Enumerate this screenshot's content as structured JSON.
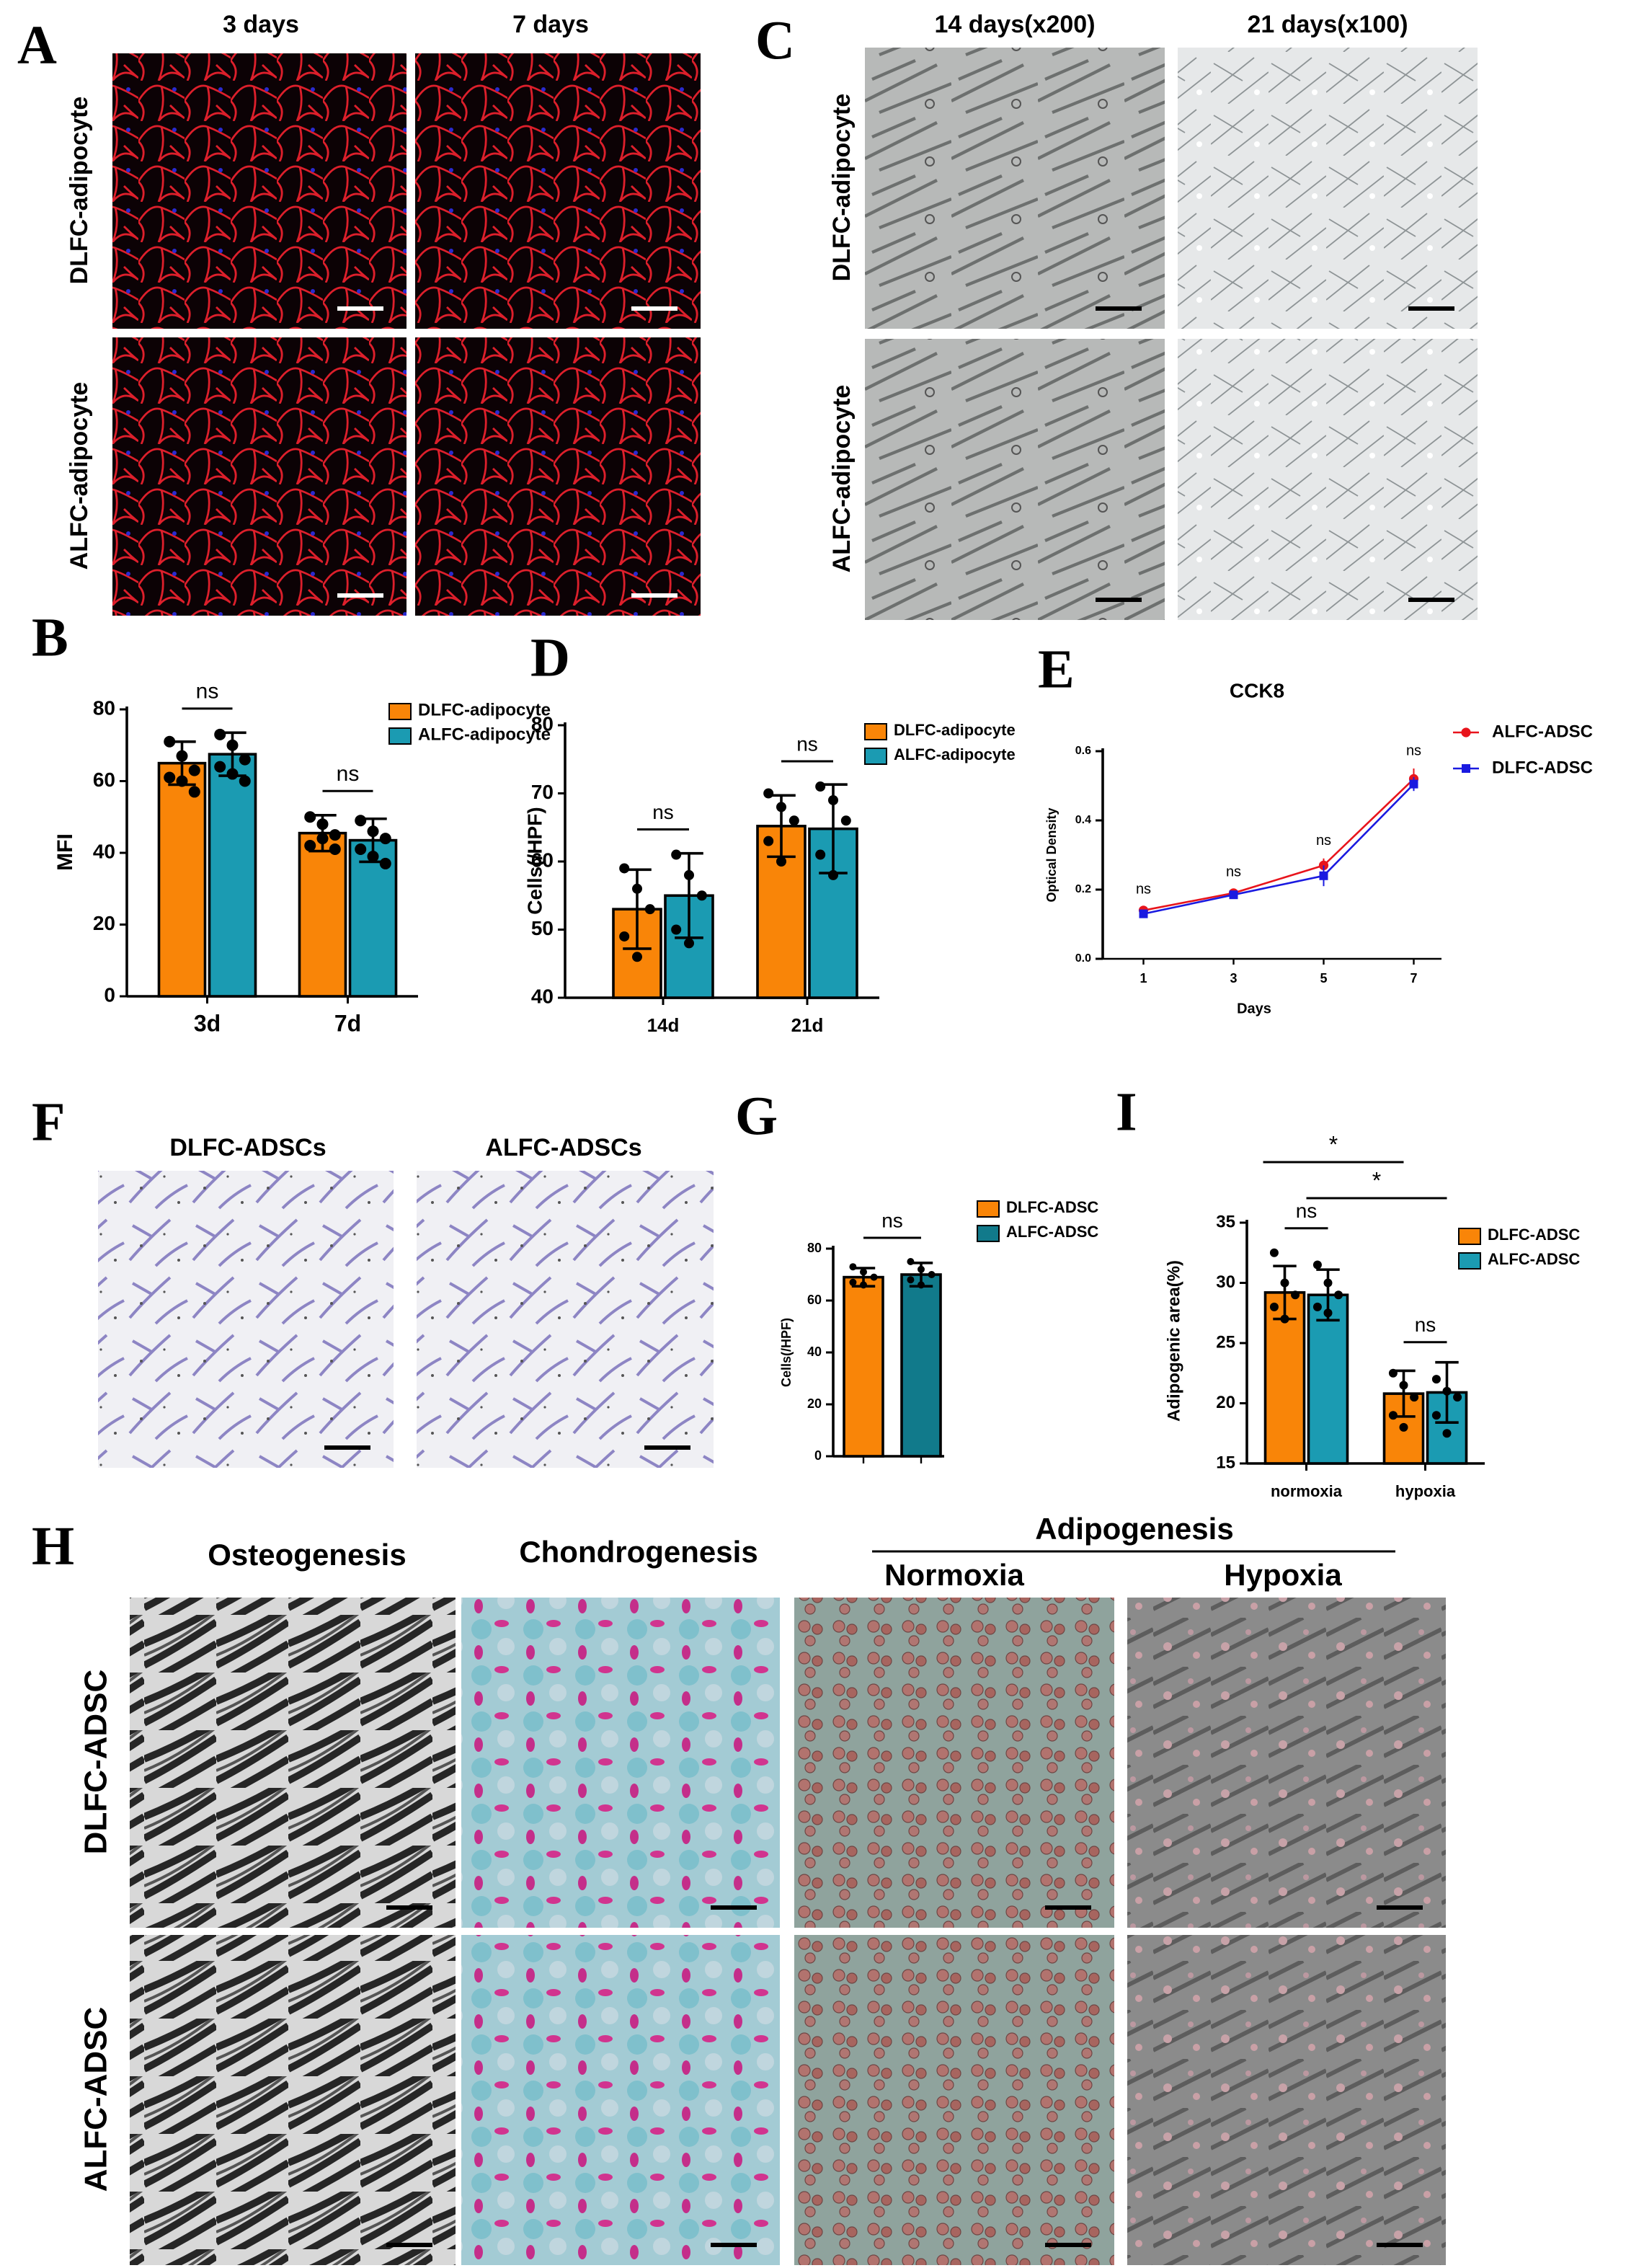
{
  "figure": {
    "A": {
      "letter": "A",
      "columns": [
        "3 days",
        "7 days"
      ],
      "rows": [
        "DLFC-adipocyte",
        "ALFC-adipocyte"
      ]
    },
    "C": {
      "letter": "C",
      "columns": [
        "14 days(x200)",
        "21 days(x100)"
      ],
      "rows": [
        "DLFC-adipocyte",
        "ALFC-adipocyte"
      ]
    },
    "F": {
      "letter": "F",
      "columns": [
        "DLFC-ADSCs",
        "ALFC-ADSCs"
      ]
    },
    "H": {
      "letter": "H",
      "columns": [
        "Osteogenesis",
        "Chondrogenesis"
      ],
      "group": "Adipogenesis",
      "subcolumns": [
        "Normoxia",
        "Hypoxia"
      ],
      "rows": [
        "DLFC-ADSC",
        "ALFC-ADSC"
      ]
    }
  },
  "chart_data": [
    {
      "letter": "B",
      "type": "bar",
      "ylabel": "MFI",
      "categories": [
        "3d",
        "7d"
      ],
      "ylim": [
        0,
        80
      ],
      "yticks": [
        0,
        20,
        40,
        60,
        80
      ],
      "series": [
        {
          "name": "DLFC-adipocyte",
          "color": "#f98508",
          "values": [
            65,
            45.5
          ],
          "errors": [
            6,
            5
          ],
          "points": [
            [
              71,
              67,
              63,
              61,
              60,
              57
            ],
            [
              50,
              48,
              45,
              42,
              44,
              41
            ]
          ]
        },
        {
          "name": "ALFC-adipocyte",
          "color": "#1b9bb2",
          "values": [
            67.5,
            43.5
          ],
          "errors": [
            6,
            6
          ],
          "points": [
            [
              73,
              70,
              66,
              64,
              62,
              60
            ],
            [
              49,
              46,
              44,
              41,
              39,
              37
            ]
          ]
        }
      ],
      "pair_labels": [
        "ns",
        "ns"
      ]
    },
    {
      "letter": "D",
      "type": "bar",
      "ylabel": "Cells(/HPF)",
      "categories": [
        "14d",
        "21d"
      ],
      "ylim": [
        40,
        80
      ],
      "yticks": [
        40,
        50,
        60,
        70,
        80
      ],
      "series": [
        {
          "name": "DLFC-adipocyte",
          "color": "#f98508",
          "values": [
            53,
            65.2
          ],
          "errors": [
            5.8,
            4.5
          ],
          "points": [
            [
              59,
              56,
              53,
              49,
              46
            ],
            [
              70,
              68,
              66,
              63,
              60
            ]
          ]
        },
        {
          "name": "ALFC-adipocyte",
          "color": "#1b9bb2",
          "values": [
            55,
            64.8
          ],
          "errors": [
            6.2,
            6.5
          ],
          "points": [
            [
              61,
              58,
              55,
              50,
              48
            ],
            [
              71,
              69,
              66,
              61,
              58
            ]
          ]
        }
      ],
      "pair_labels": [
        "ns",
        "ns"
      ]
    },
    {
      "letter": "E",
      "type": "line",
      "title": "CCK8",
      "xlabel": "Days",
      "ylabel": "Optical Density",
      "x": [
        1,
        3,
        5,
        7
      ],
      "xlim": [
        0,
        8
      ],
      "xticks": [
        1,
        3,
        5,
        7
      ],
      "ylim": [
        0,
        0.6
      ],
      "yticks": [
        {
          "value": 0,
          "label": "0.0"
        },
        0.2,
        0.4,
        0.6
      ],
      "series": [
        {
          "name": "ALFC-ADSC",
          "color": "#e8141c",
          "marker": "circle",
          "values": [
            0.14,
            0.19,
            0.27,
            0.52
          ],
          "errors": [
            0.01,
            0.01,
            0.02,
            0.03
          ]
        },
        {
          "name": "DLFC-ADSC",
          "color": "#1a1ae0",
          "marker": "square",
          "values": [
            0.13,
            0.185,
            0.24,
            0.505
          ],
          "errors": [
            0.01,
            0.01,
            0.03,
            0.02
          ]
        }
      ],
      "point_labels": [
        "ns",
        "ns",
        "ns",
        "ns"
      ]
    },
    {
      "letter": "G",
      "type": "bar",
      "ylabel": "Cells(/HPF)",
      "categories": [
        null
      ],
      "ylim": [
        0,
        80
      ],
      "yticks": [
        0,
        20,
        40,
        60,
        80
      ],
      "series": [
        {
          "name": "DLFC-ADSC",
          "color": "#f98508",
          "values": [
            69
          ],
          "errors": [
            3.5
          ],
          "points": [
            [
              73,
              71,
              69,
              67,
              66
            ]
          ]
        },
        {
          "name": "ALFC-ADSC",
          "color": "#117a8b",
          "values": [
            70
          ],
          "errors": [
            4.5
          ],
          "points": [
            [
              75,
              72,
              70,
              68,
              66
            ]
          ]
        }
      ],
      "pair_labels": [
        "ns"
      ]
    },
    {
      "letter": "I",
      "type": "bar",
      "ylabel": "Adipogenic area(%)",
      "categories": [
        "normoxia",
        "hypoxia"
      ],
      "ylim": [
        15,
        35
      ],
      "yticks": [
        15,
        20,
        25,
        30,
        35
      ],
      "series": [
        {
          "name": "DLFC-ADSC",
          "color": "#f98508",
          "values": [
            29.2,
            20.8
          ],
          "errors": [
            2.2,
            1.9
          ],
          "points": [
            [
              32.5,
              30,
              29,
              28,
              27
            ],
            [
              22.5,
              21.5,
              20.5,
              19,
              18
            ]
          ]
        },
        {
          "name": "ALFC-ADSC",
          "color": "#1b9bb2",
          "values": [
            29,
            20.9
          ],
          "errors": [
            2.1,
            2.5
          ],
          "points": [
            [
              31.5,
              30,
              29,
              28,
              27.5
            ],
            [
              22,
              21,
              20.5,
              19,
              17.5
            ]
          ]
        }
      ],
      "pair_labels": [
        "ns",
        "ns"
      ],
      "across_labels": [
        "*",
        "*"
      ]
    }
  ]
}
